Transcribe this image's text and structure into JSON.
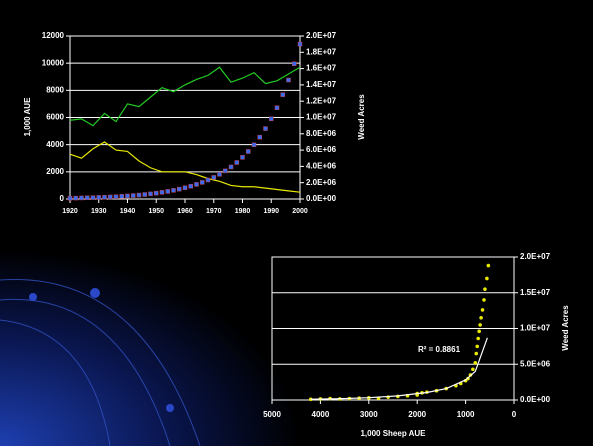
{
  "chart_data": [
    {
      "type": "line",
      "xlim": [
        1920,
        2000
      ],
      "xticks": [
        1920,
        1930,
        1940,
        1950,
        1960,
        1970,
        1980,
        1990,
        2000
      ],
      "ylabel": "1,000 AUE",
      "ylim": [
        0,
        12000
      ],
      "yticks": [
        0,
        2000,
        4000,
        6000,
        8000,
        10000,
        12000
      ],
      "y2label": "Weed Acres",
      "y2lim": [
        0,
        20000000
      ],
      "y2ticks": [
        {
          "value": 0,
          "label": "0.0E+00"
        },
        {
          "value": 2000000,
          "label": "2.0E+06"
        },
        {
          "value": 4000000,
          "label": "4.0E+06"
        },
        {
          "value": 6000000,
          "label": "6.0E+06"
        },
        {
          "value": 8000000,
          "label": "8.0E+06"
        },
        {
          "value": 10000000,
          "label": "1.0E+07"
        },
        {
          "value": 12000000,
          "label": "1.2E+07"
        },
        {
          "value": 14000000,
          "label": "1.4E+07"
        },
        {
          "value": 16000000,
          "label": "1.6E+07"
        },
        {
          "value": 18000000,
          "label": "1.8E+07"
        },
        {
          "value": 20000000,
          "label": "2.0E+07"
        }
      ],
      "grid": true,
      "series": [
        {
          "color": "#22cc22",
          "x": [
            1920,
            1924,
            1928,
            1932,
            1936,
            1940,
            1944,
            1948,
            1952,
            1956,
            1960,
            1964,
            1968,
            1972,
            1976,
            1980,
            1984,
            1988,
            1992,
            1996,
            2000
          ],
          "values": [
            5800,
            5900,
            5400,
            6300,
            5700,
            7000,
            6800,
            7500,
            8200,
            7900,
            8400,
            8800,
            9100,
            9700,
            8600,
            8900,
            9300,
            8500,
            8700,
            9200,
            9700
          ]
        },
        {
          "color": "#e8e800",
          "x": [
            1920,
            1924,
            1928,
            1932,
            1936,
            1940,
            1944,
            1948,
            1952,
            1956,
            1960,
            1964,
            1968,
            1972,
            1976,
            1980,
            1984,
            1988,
            1992,
            1996,
            2000
          ],
          "values": [
            3300,
            3000,
            3700,
            4200,
            3600,
            3500,
            2800,
            2300,
            2000,
            2000,
            2000,
            1800,
            1500,
            1300,
            1000,
            900,
            900,
            800,
            700,
            600,
            500
          ]
        },
        {
          "color": "#3a6cf0",
          "axis": "y2",
          "marker": "square",
          "x": [
            1920,
            1922,
            1924,
            1926,
            1928,
            1930,
            1932,
            1934,
            1936,
            1938,
            1940,
            1942,
            1944,
            1946,
            1948,
            1950,
            1952,
            1954,
            1956,
            1958,
            1960,
            1962,
            1964,
            1966,
            1968,
            1970,
            1972,
            1974,
            1976,
            1978,
            1980,
            1982,
            1984,
            1986,
            1988,
            1990,
            1992,
            1994,
            1996,
            1998,
            2000
          ],
          "values": [
            100000,
            114000,
            130000,
            148000,
            169000,
            193000,
            220000,
            251000,
            286000,
            326000,
            371000,
            423000,
            483000,
            550000,
            627000,
            715000,
            816000,
            930000,
            1060000,
            1210000,
            1380000,
            1570000,
            1790000,
            2040000,
            2330000,
            2650000,
            3030000,
            3450000,
            3930000,
            4480000,
            5110000,
            5830000,
            6650000,
            7580000,
            8640000,
            9850000,
            11200000,
            12800000,
            14600000,
            16600000,
            19000000
          ]
        }
      ]
    },
    {
      "type": "scatter",
      "xlabel": "1,000 Sheep AUE",
      "xlim": [
        5000,
        0
      ],
      "xticks": [
        5000,
        4000,
        3000,
        2000,
        1000,
        0
      ],
      "ylabel": "Weed Acres",
      "ylim": [
        0,
        20000000
      ],
      "yticks": [
        {
          "value": 0,
          "label": "0.0E+00"
        },
        {
          "value": 5000000,
          "label": "5.0E+06"
        },
        {
          "value": 10000000,
          "label": "1.0E+07"
        },
        {
          "value": 15000000,
          "label": "1.5E+07"
        },
        {
          "value": 20000000,
          "label": "2.0E+07"
        }
      ],
      "grid": true,
      "color": "#e8e800",
      "annotation": "R² = 0.8861",
      "x": [
        4200,
        4000,
        3800,
        3600,
        3400,
        3200,
        3000,
        2800,
        2600,
        2400,
        2200,
        2000,
        2000,
        1900,
        1800,
        1600,
        1400,
        1200,
        1100,
        1000,
        950,
        900,
        850,
        800,
        780,
        760,
        740,
        720,
        700,
        680,
        650,
        620,
        600,
        560,
        530
      ],
      "values": [
        100000,
        150000,
        200000,
        150000,
        200000,
        250000,
        300000,
        250000,
        400000,
        500000,
        600000,
        700000,
        900000,
        1000000,
        1100000,
        1300000,
        1600000,
        2000000,
        2300000,
        2700000,
        3000000,
        3500000,
        4300000,
        5200000,
        6500000,
        7500000,
        8600000,
        9600000,
        10500000,
        11500000,
        12600000,
        14000000,
        15500000,
        17000000,
        18800000
      ],
      "trendline": {
        "color": "#ffffff",
        "x": [
          4200,
          3600,
          3000,
          2400,
          1800,
          1400,
          1000,
          800,
          550
        ],
        "values": [
          100000,
          180000,
          320000,
          580000,
          1050000,
          1600000,
          2800000,
          4000000,
          8700000
        ]
      }
    }
  ]
}
